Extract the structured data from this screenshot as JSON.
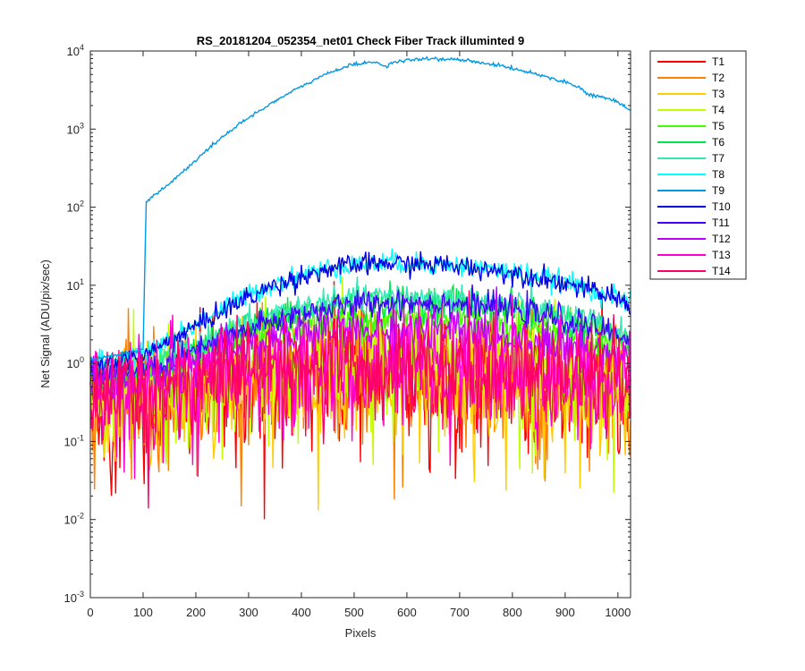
{
  "chart_data": {
    "type": "line",
    "title": "RS_20181204_052354_net01   Check Fiber     Track illuminted 9",
    "xlabel": "Pixels",
    "ylabel": "Net Signal (ADU/pix/sec)",
    "xlim": [
      0,
      1024
    ],
    "ylim": [
      0.001,
      10000
    ],
    "yscale": "log",
    "grid": false,
    "legend_position": "outside-top-right",
    "x_ticks": [
      0,
      100,
      200,
      300,
      400,
      500,
      600,
      700,
      800,
      900,
      1000
    ],
    "y_ticks": [
      {
        "base": "10",
        "exp": "-3",
        "value": 0.001
      },
      {
        "base": "10",
        "exp": "-2",
        "value": 0.01
      },
      {
        "base": "10",
        "exp": "-1",
        "value": 0.1
      },
      {
        "base": "10",
        "exp": "0",
        "value": 1
      },
      {
        "base": "10",
        "exp": "1",
        "value": 10
      },
      {
        "base": "10",
        "exp": "2",
        "value": 100
      },
      {
        "base": "10",
        "exp": "3",
        "value": 1000
      },
      {
        "base": "10",
        "exp": "4",
        "value": 10000
      }
    ],
    "x": [
      0,
      100,
      106,
      150,
      200,
      250,
      300,
      350,
      400,
      450,
      500,
      530,
      550,
      560,
      570,
      600,
      650,
      700,
      750,
      800,
      850,
      900,
      930,
      940,
      960,
      1000,
      1024
    ],
    "series": [
      {
        "name": "T1",
        "color": "#ff0000",
        "noise": 1.2,
        "values": [
          0.25,
          0.3,
          0.3,
          0.33,
          0.4,
          0.45,
          0.5,
          0.55,
          0.6,
          0.62,
          0.64,
          0.65,
          0.65,
          0.65,
          0.65,
          0.66,
          0.65,
          0.64,
          0.62,
          0.6,
          0.55,
          0.5,
          0.47,
          0.45,
          0.42,
          0.35,
          0.3
        ]
      },
      {
        "name": "T2",
        "color": "#ff8000",
        "noise": 1.1,
        "values": [
          0.3,
          0.35,
          0.35,
          0.4,
          0.45,
          0.5,
          0.55,
          0.6,
          0.65,
          0.68,
          0.7,
          0.7,
          0.7,
          0.7,
          0.7,
          0.72,
          0.7,
          0.68,
          0.66,
          0.63,
          0.6,
          0.55,
          0.5,
          0.48,
          0.45,
          0.38,
          0.33
        ]
      },
      {
        "name": "T3",
        "color": "#ffcc00",
        "noise": 1.1,
        "values": [
          0.3,
          0.35,
          0.35,
          0.4,
          0.45,
          0.5,
          0.55,
          0.6,
          0.65,
          0.7,
          0.72,
          0.72,
          0.72,
          0.72,
          0.72,
          0.73,
          0.72,
          0.7,
          0.68,
          0.65,
          0.6,
          0.55,
          0.5,
          0.48,
          0.45,
          0.4,
          0.35
        ]
      },
      {
        "name": "T4",
        "color": "#bfff00",
        "noise": 0.9,
        "values": [
          0.4,
          0.45,
          0.45,
          0.5,
          0.6,
          0.7,
          0.8,
          0.9,
          1.0,
          1.05,
          1.1,
          1.1,
          1.1,
          1.1,
          1.1,
          1.12,
          1.1,
          1.05,
          1.0,
          0.95,
          0.9,
          0.8,
          0.75,
          0.72,
          0.68,
          0.6,
          0.55
        ]
      },
      {
        "name": "T5",
        "color": "#40ff00",
        "noise": 0.35,
        "values": [
          0.7,
          0.8,
          0.8,
          1.0,
          1.3,
          1.7,
          2.2,
          2.7,
          3.1,
          3.4,
          3.6,
          3.7,
          3.7,
          3.7,
          3.7,
          3.8,
          3.8,
          3.7,
          3.5,
          3.2,
          2.9,
          2.5,
          2.2,
          2.1,
          2.0,
          1.6,
          1.4
        ]
      },
      {
        "name": "T6",
        "color": "#00e64d",
        "noise": 0.3,
        "values": [
          0.7,
          0.8,
          0.8,
          1.05,
          1.5,
          2.2,
          3.0,
          3.8,
          4.6,
          5.3,
          5.8,
          6.0,
          6.1,
          6.1,
          6.1,
          6.2,
          6.1,
          5.9,
          5.5,
          5.0,
          4.4,
          3.7,
          3.2,
          3.1,
          2.9,
          2.3,
          2.0
        ]
      },
      {
        "name": "T7",
        "color": "#33e6b3",
        "noise": 0.25,
        "values": [
          0.8,
          0.9,
          0.9,
          1.15,
          1.6,
          2.4,
          3.3,
          4.3,
          5.2,
          6.0,
          6.6,
          6.9,
          7.0,
          7.0,
          7.0,
          7.1,
          7.0,
          6.7,
          6.3,
          5.7,
          5.0,
          4.2,
          3.6,
          3.5,
          3.2,
          2.6,
          2.2
        ]
      },
      {
        "name": "T8",
        "color": "#00ffff",
        "noise": 0.2,
        "values": [
          1.0,
          1.3,
          1.4,
          2.0,
          3.2,
          5.0,
          7.5,
          10.5,
          13.5,
          16.5,
          18.5,
          19.2,
          19.5,
          19.5,
          19.5,
          19.3,
          18.8,
          17.8,
          16.5,
          14.8,
          13.0,
          11.0,
          9.5,
          9.0,
          8.4,
          6.8,
          5.8
        ]
      },
      {
        "name": "T9",
        "color": "#0099e6",
        "noise": 0.03,
        "values": [
          1.1,
          1.5,
          120,
          200,
          400,
          800,
          1400,
          2300,
          3500,
          5200,
          6800,
          7200,
          7000,
          6200,
          7000,
          7600,
          8000,
          7700,
          7000,
          6000,
          5000,
          4000,
          3400,
          2800,
          2700,
          2200,
          1700
        ]
      },
      {
        "name": "T10",
        "color": "#0000e6",
        "noise": 0.2,
        "values": [
          0.9,
          1.2,
          1.3,
          1.9,
          3.0,
          4.7,
          7.0,
          10.0,
          13.0,
          16.0,
          18.0,
          18.7,
          19.0,
          19.0,
          19.0,
          18.8,
          18.4,
          17.5,
          16.2,
          14.5,
          12.7,
          10.7,
          9.3,
          8.8,
          8.2,
          6.6,
          5.6
        ]
      },
      {
        "name": "T11",
        "color": "#4000ff",
        "noise": 0.25,
        "values": [
          0.7,
          0.8,
          0.8,
          1.0,
          1.4,
          2.0,
          2.7,
          3.5,
          4.3,
          5.0,
          5.6,
          5.9,
          6.0,
          6.0,
          6.0,
          6.1,
          6.0,
          5.8,
          5.4,
          4.9,
          4.3,
          3.6,
          3.1,
          3.0,
          2.8,
          2.3,
          2.0
        ]
      },
      {
        "name": "T12",
        "color": "#bf00ff",
        "noise": 0.4,
        "values": [
          0.6,
          0.65,
          0.65,
          0.8,
          1.0,
          1.35,
          1.7,
          2.0,
          2.3,
          2.5,
          2.6,
          2.65,
          2.7,
          2.7,
          2.7,
          2.7,
          2.65,
          2.6,
          2.5,
          2.3,
          2.0,
          1.75,
          1.55,
          1.5,
          1.45,
          1.2,
          1.05
        ]
      },
      {
        "name": "T13",
        "color": "#ff00cc",
        "noise": 1.0,
        "values": [
          0.35,
          0.4,
          0.4,
          0.45,
          0.55,
          0.6,
          0.7,
          0.75,
          0.8,
          0.85,
          0.88,
          0.9,
          0.9,
          0.9,
          0.9,
          0.9,
          0.88,
          0.85,
          0.82,
          0.78,
          0.72,
          0.65,
          0.6,
          0.58,
          0.55,
          0.48,
          0.42
        ]
      },
      {
        "name": "T14",
        "color": "#ff0066",
        "noise": 0.9,
        "values": [
          0.4,
          0.45,
          0.45,
          0.5,
          0.6,
          0.7,
          0.8,
          0.85,
          0.9,
          0.95,
          1.0,
          1.0,
          1.0,
          1.0,
          1.0,
          1.0,
          1.0,
          0.97,
          0.93,
          0.88,
          0.8,
          0.72,
          0.66,
          0.64,
          0.6,
          0.52,
          0.46
        ]
      }
    ]
  }
}
